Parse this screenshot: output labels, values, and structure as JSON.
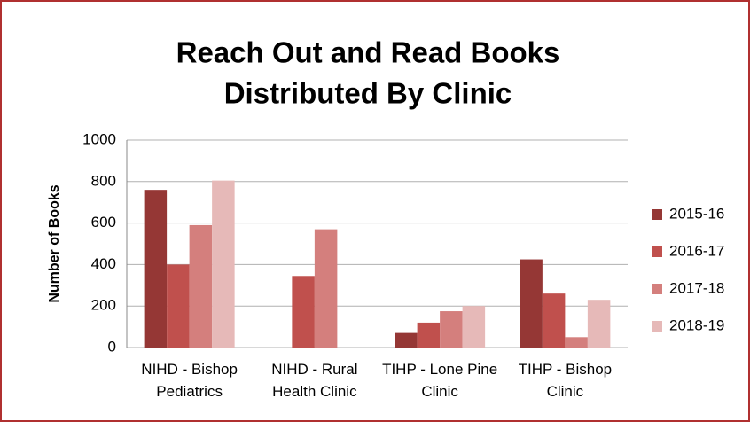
{
  "chart_data": {
    "type": "bar",
    "title": [
      "Reach Out and Read Books",
      "Distributed By Clinic"
    ],
    "y_label": "Number of Books",
    "categories": [
      "NIHD - Bishop Pediatrics",
      "NIHD - Rural Health Clinic",
      "TIHP - Lone Pine Clinic",
      "TIHP - Bishop Clinic"
    ],
    "series": [
      {
        "name": "2015-16",
        "color": "#953735",
        "values": [
          760,
          0,
          70,
          425
        ]
      },
      {
        "name": "2016-17",
        "color": "#c0504d",
        "values": [
          400,
          345,
          120,
          260
        ]
      },
      {
        "name": "2017-18",
        "color": "#d47f7d",
        "values": [
          590,
          570,
          175,
          50
        ]
      },
      {
        "name": "2018-19",
        "color": "#e6b9b8",
        "values": [
          805,
          0,
          200,
          230
        ]
      }
    ],
    "ylim": [
      0,
      1000
    ],
    "yticks": [
      0,
      200,
      400,
      600,
      800,
      1000
    ],
    "grid": true,
    "legend": "right"
  }
}
